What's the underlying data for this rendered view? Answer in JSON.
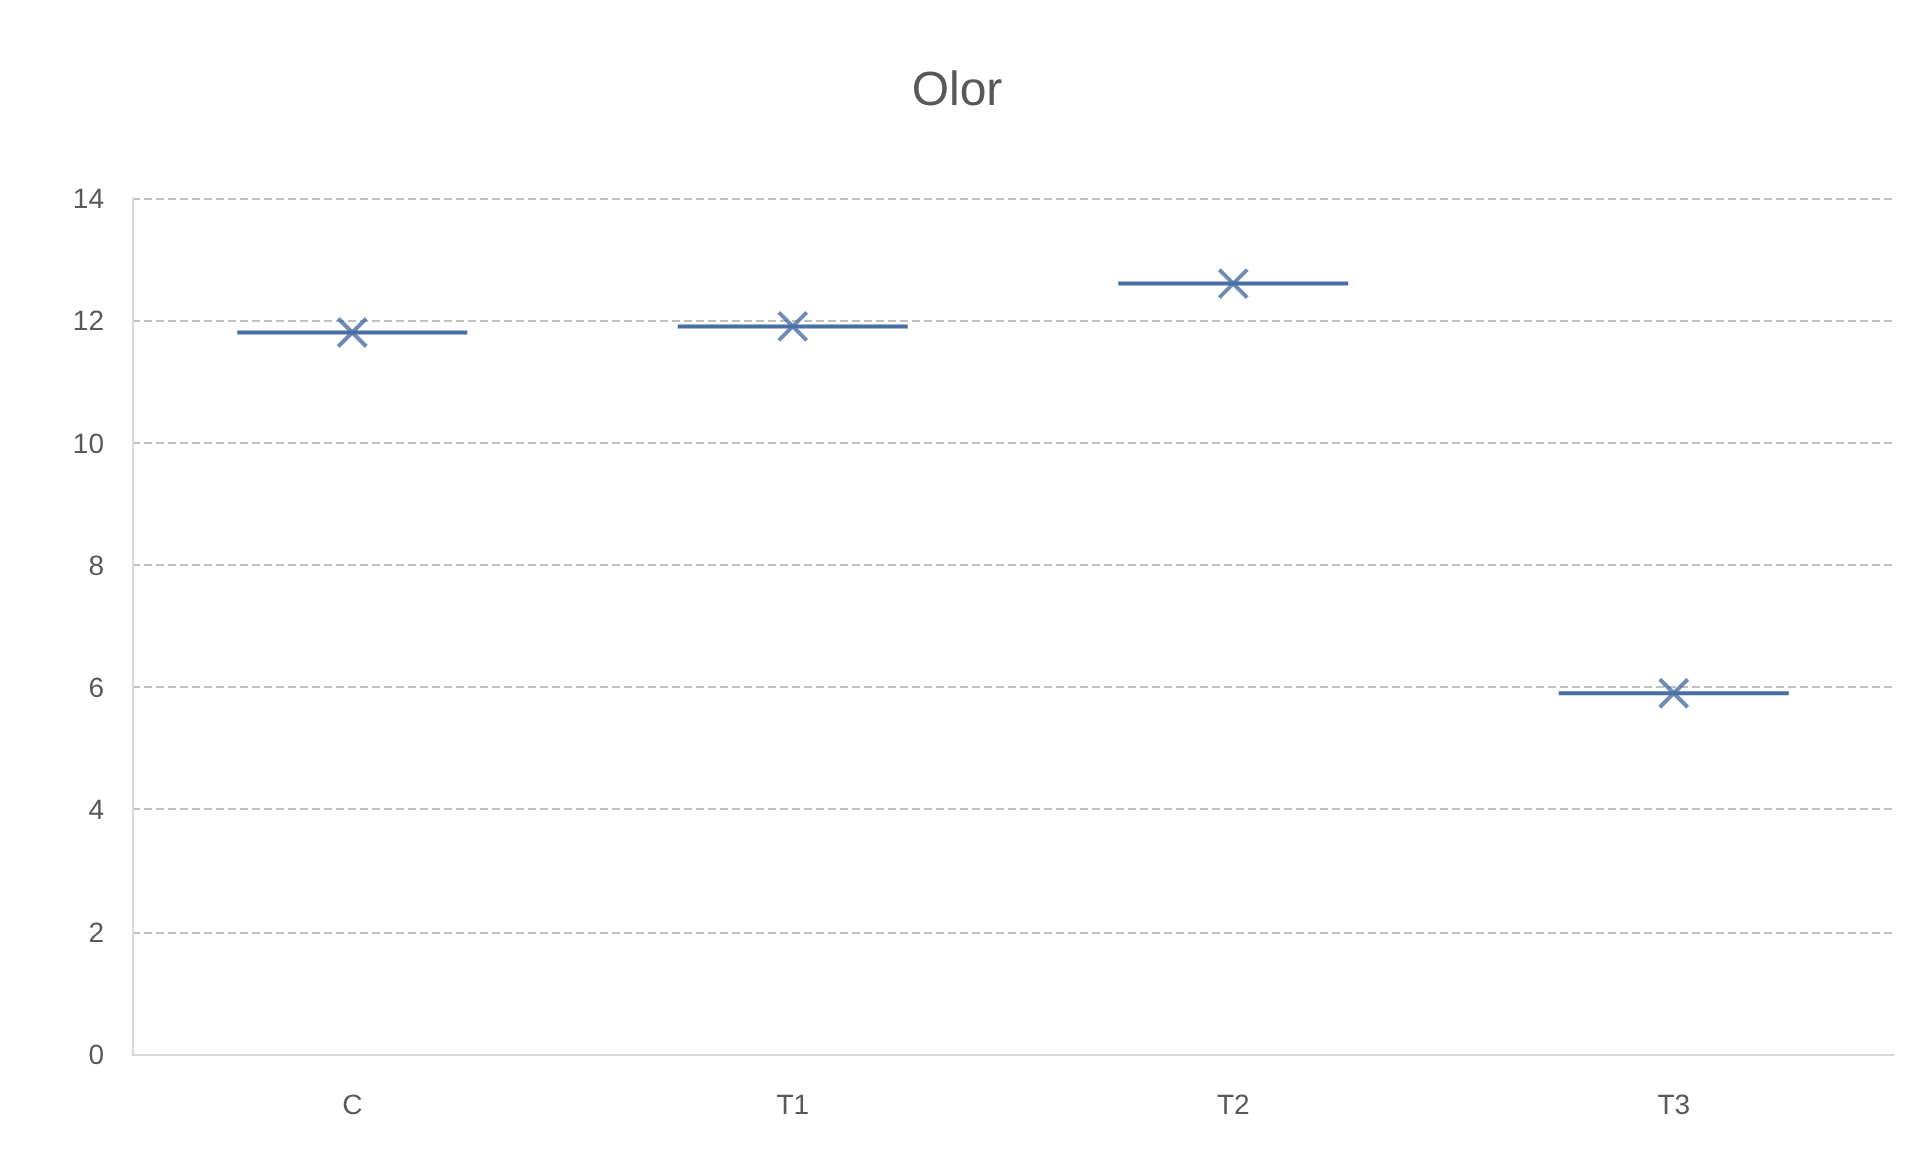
{
  "chart_data": {
    "type": "box",
    "title": "Olor",
    "categories": [
      "C",
      "T1",
      "T2",
      "T3"
    ],
    "boxes": [
      {
        "low": 11.8,
        "q1": 11.8,
        "median": 11.8,
        "q3": 11.8,
        "high": 11.8,
        "mean": 11.8
      },
      {
        "low": 11.9,
        "q1": 11.9,
        "median": 11.9,
        "q3": 11.9,
        "high": 11.9,
        "mean": 11.9
      },
      {
        "low": 12.6,
        "q1": 12.6,
        "median": 12.6,
        "q3": 12.6,
        "high": 12.6,
        "mean": 12.6
      },
      {
        "low": 5.9,
        "q1": 5.9,
        "median": 5.9,
        "q3": 5.9,
        "high": 5.9,
        "mean": 5.9
      }
    ],
    "color": "#4a6fa5",
    "ylim": [
      0,
      14
    ],
    "yticks": [
      0,
      2,
      4,
      6,
      8,
      10,
      12,
      14
    ],
    "grid": "y",
    "marker": "cross"
  }
}
